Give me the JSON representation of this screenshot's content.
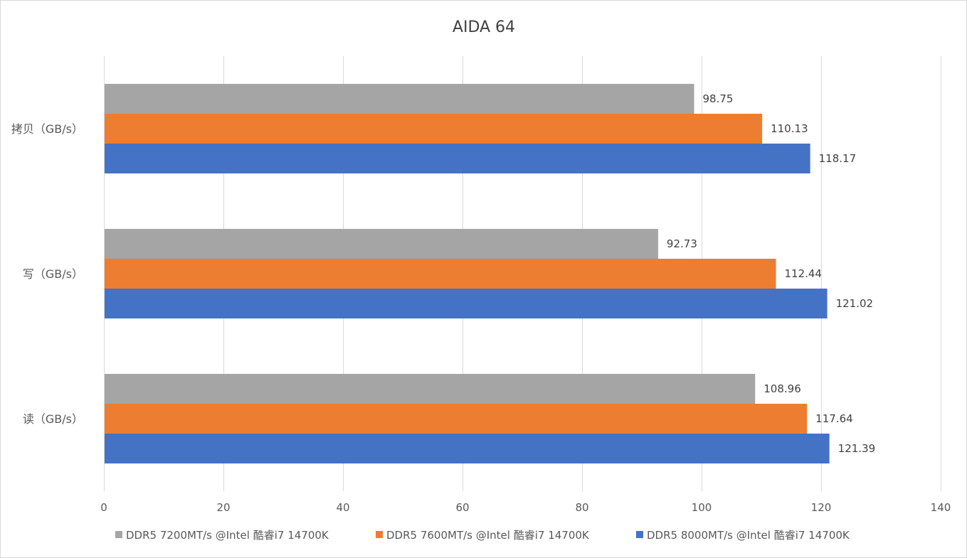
{
  "chart_data": {
    "type": "bar",
    "orientation": "horizontal",
    "title": "AIDA 64",
    "xlabel": "",
    "ylabel": "",
    "categories": [
      "读（GB/s）",
      "写（GB/s）",
      "拷贝（GB/s）"
    ],
    "series": [
      {
        "name": "DDR5 7200MT/s @Intel 酷睿i7 14700K",
        "color": "#a5a5a5",
        "values": [
          108.96,
          92.73,
          98.75
        ]
      },
      {
        "name": "DDR5 7600MT/s @Intel 酷睿i7 14700K",
        "color": "#ed7d31",
        "values": [
          117.64,
          112.44,
          110.13
        ]
      },
      {
        "name": "DDR5 8000MT/s @Intel 酷睿i7 14700K",
        "color": "#4472c4",
        "values": [
          121.39,
          121.02,
          118.17
        ]
      }
    ],
    "xlim": [
      0,
      140
    ],
    "x_ticks": [
      0,
      20,
      40,
      60,
      80,
      100,
      120,
      140
    ],
    "grid": "vertical",
    "legend_position": "bottom",
    "data_labels": true
  }
}
